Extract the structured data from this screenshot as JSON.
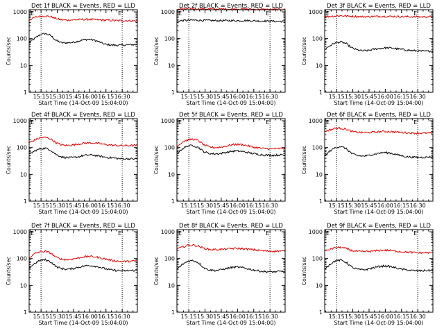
{
  "chart_data": [
    {
      "type": "line",
      "title": "Det 1f BLACK = Events, RED = LLD",
      "ylabel": "Counts/sec",
      "xlabel": "Start Time (14-Oct-09 15:04:00)",
      "xticks": [
        "15:15",
        "15:30",
        "15:45",
        "16:00",
        "16:15",
        "16:30"
      ],
      "yticks": [
        "1",
        "10",
        "100",
        "1000"
      ],
      "ylim": [
        1,
        1200
      ],
      "xlim_minutes": [
        0,
        100
      ],
      "markers": [
        "E",
        "E"
      ],
      "series": [
        {
          "name": "Events",
          "color": "#000000",
          "x": [
            0,
            5,
            10,
            15,
            20,
            25,
            30,
            35,
            40,
            45,
            50,
            55,
            60,
            65,
            70,
            75,
            80,
            85,
            90,
            95,
            100
          ],
          "values": [
            70,
            100,
            140,
            155,
            130,
            85,
            70,
            70,
            72,
            80,
            90,
            95,
            88,
            75,
            62,
            58,
            57,
            57,
            58,
            60,
            60
          ]
        },
        {
          "name": "LLD",
          "color": "#e00000",
          "x": [
            0,
            5,
            10,
            15,
            20,
            25,
            30,
            35,
            40,
            45,
            50,
            55,
            60,
            65,
            70,
            75,
            80,
            85,
            90,
            95,
            100
          ],
          "values": [
            500,
            620,
            680,
            700,
            660,
            560,
            500,
            490,
            500,
            510,
            520,
            520,
            510,
            500,
            490,
            480,
            470,
            470,
            470,
            460,
            460
          ]
        }
      ]
    },
    {
      "type": "line",
      "title": "Det 2f BLACK = Events, RED = LLD",
      "ylabel": "Counts/sec",
      "xlabel": "Start Time (14-Oct-09 15:04:00)",
      "xticks": [
        "15:15",
        "15:30",
        "15:45",
        "16:00",
        "16:15",
        "16:30"
      ],
      "yticks": [
        "1",
        "10",
        "100",
        "1000"
      ],
      "ylim": [
        1,
        1200
      ],
      "xlim_minutes": [
        0,
        100
      ],
      "markers": [
        "E",
        "E"
      ],
      "series": [
        {
          "name": "Events",
          "color": "#000000",
          "x": [
            0,
            5,
            10,
            15,
            20,
            25,
            30,
            35,
            40,
            45,
            50,
            55,
            60,
            65,
            70,
            75,
            80,
            85,
            90,
            95,
            100
          ],
          "values": [
            450,
            470,
            480,
            490,
            485,
            480,
            475,
            470,
            470,
            470,
            470,
            470,
            470,
            468,
            465,
            460,
            455,
            450,
            445,
            440,
            440
          ]
        },
        {
          "name": "LLD",
          "color": "#e00000",
          "x": [
            0,
            5,
            10,
            15,
            20,
            25,
            30,
            35,
            40,
            45,
            50,
            55,
            60,
            65,
            70,
            75,
            80,
            85,
            90,
            95,
            100
          ],
          "values": [
            1250,
            1280,
            1300,
            1300,
            1290,
            1280,
            1270,
            1270,
            1270,
            1270,
            1270,
            1270,
            1270,
            1260,
            1250,
            1240,
            1230,
            1220,
            1220,
            1230,
            1230
          ]
        }
      ]
    },
    {
      "type": "line",
      "title": "Det 3f BLACK = Events, RED = LLD",
      "ylabel": "Counts/sec",
      "xlabel": "Start Time (14-Oct-09 15:04:00)",
      "xticks": [
        "15:15",
        "15:30",
        "15:45",
        "16:00",
        "16:15",
        "16:30"
      ],
      "yticks": [
        "1",
        "10",
        "100",
        "1000"
      ],
      "ylim": [
        1,
        1200
      ],
      "xlim_minutes": [
        0,
        100
      ],
      "markers": [
        "E",
        "E"
      ],
      "series": [
        {
          "name": "Events",
          "color": "#000000",
          "x": [
            0,
            5,
            10,
            15,
            20,
            25,
            30,
            35,
            40,
            45,
            50,
            55,
            60,
            65,
            70,
            75,
            80,
            85,
            90,
            95,
            100
          ],
          "values": [
            40,
            55,
            70,
            75,
            65,
            45,
            38,
            35,
            36,
            40,
            43,
            45,
            45,
            43,
            40,
            38,
            36,
            35,
            34,
            34,
            35
          ]
        },
        {
          "name": "LLD",
          "color": "#e00000",
          "x": [
            0,
            5,
            10,
            15,
            20,
            25,
            30,
            35,
            40,
            45,
            50,
            55,
            60,
            65,
            70,
            75,
            80,
            85,
            90,
            95,
            100
          ],
          "values": [
            650,
            680,
            700,
            720,
            700,
            680,
            670,
            660,
            660,
            670,
            680,
            680,
            675,
            670,
            665,
            660,
            655,
            650,
            650,
            655,
            655
          ]
        }
      ]
    },
    {
      "type": "line",
      "title": "Det 4f BLACK = Events, RED = LLD",
      "ylabel": "Counts/sec",
      "xlabel": "Start Time (14-Oct-09 15:04:00)",
      "xticks": [
        "15:15",
        "15:30",
        "15:45",
        "16:00",
        "16:15",
        "16:30"
      ],
      "yticks": [
        "1",
        "10",
        "100",
        "1000"
      ],
      "ylim": [
        1,
        1200
      ],
      "xlim_minutes": [
        0,
        100
      ],
      "markers": [
        "E",
        "E"
      ],
      "series": [
        {
          "name": "Events",
          "color": "#000000",
          "x": [
            0,
            5,
            10,
            15,
            20,
            25,
            30,
            35,
            40,
            45,
            50,
            55,
            60,
            65,
            70,
            75,
            80,
            85,
            90,
            95,
            100
          ],
          "values": [
            55,
            75,
            90,
            95,
            80,
            55,
            45,
            42,
            42,
            45,
            50,
            53,
            52,
            48,
            44,
            42,
            40,
            38,
            38,
            38,
            38
          ]
        },
        {
          "name": "LLD",
          "color": "#e00000",
          "x": [
            0,
            5,
            10,
            15,
            20,
            25,
            30,
            35,
            40,
            45,
            50,
            55,
            60,
            65,
            70,
            75,
            80,
            85,
            90,
            95,
            100
          ],
          "values": [
            150,
            190,
            230,
            240,
            210,
            150,
            125,
            120,
            125,
            135,
            145,
            150,
            148,
            140,
            130,
            125,
            120,
            118,
            118,
            120,
            120
          ]
        }
      ]
    },
    {
      "type": "line",
      "title": "Det 5f BLACK = Events, RED = LLD",
      "ylabel": "Counts/sec",
      "xlabel": "Start Time (14-Oct-09 15:04:00)",
      "xticks": [
        "15:15",
        "15:30",
        "15:45",
        "16:00",
        "16:15",
        "16:30"
      ],
      "yticks": [
        "1",
        "10",
        "100",
        "1000"
      ],
      "ylim": [
        1,
        1200
      ],
      "xlim_minutes": [
        0,
        100
      ],
      "markers": [
        "E",
        "E"
      ],
      "series": [
        {
          "name": "Events",
          "color": "#000000",
          "x": [
            0,
            5,
            10,
            15,
            20,
            25,
            30,
            35,
            40,
            45,
            50,
            55,
            60,
            65,
            70,
            75,
            80,
            85,
            90,
            95,
            100
          ],
          "values": [
            60,
            90,
            115,
            120,
            100,
            70,
            60,
            58,
            60,
            66,
            72,
            75,
            72,
            66,
            60,
            56,
            53,
            52,
            52,
            53,
            53
          ]
        },
        {
          "name": "LLD",
          "color": "#e00000",
          "x": [
            0,
            5,
            10,
            15,
            20,
            25,
            30,
            35,
            40,
            45,
            50,
            55,
            60,
            65,
            70,
            75,
            80,
            85,
            90,
            95,
            100
          ],
          "values": [
            110,
            160,
            195,
            205,
            180,
            125,
            105,
            100,
            103,
            112,
            125,
            132,
            128,
            118,
            105,
            98,
            92,
            90,
            90,
            92,
            92
          ]
        }
      ]
    },
    {
      "type": "line",
      "title": "Det 6f BLACK = Events, RED = LLD",
      "ylabel": "Counts/sec",
      "xlabel": "Start Time (14-Oct-09 15:04:00)",
      "xticks": [
        "15:15",
        "15:30",
        "15:45",
        "16:00",
        "16:15",
        "16:30"
      ],
      "yticks": [
        "1",
        "10",
        "100",
        "1000"
      ],
      "ylim": [
        1,
        1200
      ],
      "xlim_minutes": [
        0,
        100
      ],
      "markers": [
        "E",
        "E"
      ],
      "series": [
        {
          "name": "Events",
          "color": "#000000",
          "x": [
            0,
            5,
            10,
            15,
            20,
            25,
            30,
            35,
            40,
            45,
            50,
            55,
            60,
            65,
            70,
            75,
            80,
            85,
            90,
            95,
            100
          ],
          "values": [
            48,
            75,
            100,
            110,
            90,
            60,
            50,
            48,
            50,
            56,
            62,
            65,
            63,
            57,
            50,
            46,
            44,
            43,
            43,
            44,
            45
          ]
        },
        {
          "name": "LLD",
          "color": "#e00000",
          "x": [
            0,
            5,
            10,
            15,
            20,
            25,
            30,
            35,
            40,
            45,
            50,
            55,
            60,
            65,
            70,
            75,
            80,
            85,
            90,
            95,
            100
          ],
          "values": [
            400,
            460,
            520,
            530,
            480,
            400,
            370,
            360,
            365,
            375,
            390,
            400,
            395,
            385,
            370,
            360,
            350,
            345,
            345,
            345,
            345
          ]
        }
      ]
    },
    {
      "type": "line",
      "title": "Det 7f BLACK = Events, RED = LLD",
      "ylabel": "Counts/sec",
      "xlabel": "Start Time (14-Oct-09 15:04:00)",
      "xticks": [
        "15:15",
        "15:30",
        "15:45",
        "16:00",
        "16:15",
        "16:30"
      ],
      "yticks": [
        "1",
        "10",
        "100",
        "1000"
      ],
      "ylim": [
        1,
        1200
      ],
      "xlim_minutes": [
        0,
        100
      ],
      "markers": [
        "E",
        "E"
      ],
      "series": [
        {
          "name": "Events",
          "color": "#000000",
          "x": [
            0,
            5,
            10,
            15,
            20,
            25,
            30,
            35,
            40,
            45,
            50,
            55,
            60,
            65,
            70,
            75,
            80,
            85,
            90,
            95,
            100
          ],
          "values": [
            45,
            65,
            85,
            90,
            75,
            50,
            42,
            40,
            42,
            47,
            52,
            55,
            53,
            48,
            42,
            38,
            36,
            35,
            35,
            36,
            36
          ]
        },
        {
          "name": "LLD",
          "color": "#e00000",
          "x": [
            0,
            5,
            10,
            15,
            20,
            25,
            30,
            35,
            40,
            45,
            50,
            55,
            60,
            65,
            70,
            75,
            80,
            85,
            90,
            95,
            100
          ],
          "values": [
            110,
            150,
            180,
            185,
            160,
            110,
            95,
            92,
            95,
            105,
            115,
            120,
            117,
            108,
            98,
            88,
            82,
            78,
            78,
            80,
            82
          ]
        }
      ]
    },
    {
      "type": "line",
      "title": "Det 8f BLACK = Events, RED = LLD",
      "ylabel": "Counts/sec",
      "xlabel": "Start Time (14-Oct-09 15:04:00)",
      "xticks": [
        "15:15",
        "15:30",
        "15:45",
        "16:00",
        "16:15",
        "16:30"
      ],
      "yticks": [
        "1",
        "10",
        "100",
        "1000"
      ],
      "ylim": [
        1,
        1200
      ],
      "xlim_minutes": [
        0,
        100
      ],
      "markers": [
        "E",
        "E"
      ],
      "series": [
        {
          "name": "Events",
          "color": "#000000",
          "x": [
            0,
            5,
            10,
            15,
            20,
            25,
            30,
            35,
            40,
            45,
            50,
            55,
            60,
            65,
            70,
            75,
            80,
            85,
            90,
            95,
            100
          ],
          "values": [
            40,
            60,
            80,
            85,
            70,
            45,
            38,
            36,
            38,
            42,
            46,
            48,
            46,
            42,
            38,
            35,
            33,
            32,
            32,
            33,
            33
          ]
        },
        {
          "name": "LLD",
          "color": "#e00000",
          "x": [
            0,
            5,
            10,
            15,
            20,
            25,
            30,
            35,
            40,
            45,
            50,
            55,
            60,
            65,
            70,
            75,
            80,
            85,
            90,
            95,
            100
          ],
          "values": [
            230,
            270,
            310,
            320,
            290,
            240,
            220,
            215,
            218,
            225,
            235,
            240,
            235,
            225,
            215,
            205,
            195,
            190,
            190,
            190,
            190
          ]
        }
      ]
    },
    {
      "type": "line",
      "title": "Det 9f BLACK = Events, RED = LLD",
      "ylabel": "Counts/sec",
      "xlabel": "Start Time (14-Oct-09 15:04:00)",
      "xticks": [
        "15:15",
        "15:30",
        "15:45",
        "16:00",
        "16:15",
        "16:30"
      ],
      "yticks": [
        "1",
        "10",
        "100",
        "1000"
      ],
      "ylim": [
        1,
        1200
      ],
      "xlim_minutes": [
        0,
        100
      ],
      "markers": [
        "E",
        "E"
      ],
      "series": [
        {
          "name": "Events",
          "color": "#000000",
          "x": [
            0,
            5,
            10,
            15,
            20,
            25,
            30,
            35,
            40,
            45,
            50,
            55,
            60,
            65,
            70,
            75,
            80,
            85,
            90,
            95,
            100
          ],
          "values": [
            42,
            62,
            82,
            88,
            72,
            48,
            40,
            38,
            40,
            45,
            50,
            53,
            51,
            46,
            41,
            38,
            36,
            35,
            35,
            36,
            36
          ]
        },
        {
          "name": "LLD",
          "color": "#e00000",
          "x": [
            0,
            5,
            10,
            15,
            20,
            25,
            30,
            35,
            40,
            45,
            50,
            55,
            60,
            65,
            70,
            75,
            80,
            85,
            90,
            95,
            100
          ],
          "values": [
            190,
            220,
            255,
            260,
            235,
            200,
            185,
            180,
            183,
            190,
            200,
            205,
            200,
            192,
            182,
            175,
            170,
            165,
            165,
            165,
            165
          ]
        }
      ]
    }
  ]
}
